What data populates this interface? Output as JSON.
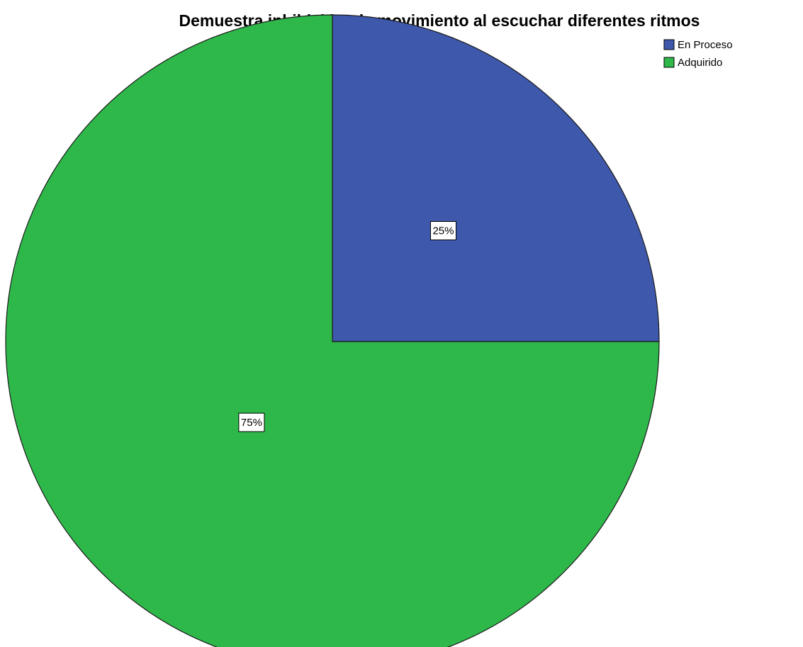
{
  "chart_data": {
    "type": "pie",
    "title": "Demuestra inhibición  de movimiento al escuchar diferentes ritmos",
    "categories": [
      "En Proceso",
      "Adquirido"
    ],
    "values": [
      25,
      75
    ],
    "value_labels": [
      "25%",
      "75%"
    ],
    "colors": [
      "#3e58ac",
      "#2eb84a"
    ],
    "legend": "top-right"
  }
}
